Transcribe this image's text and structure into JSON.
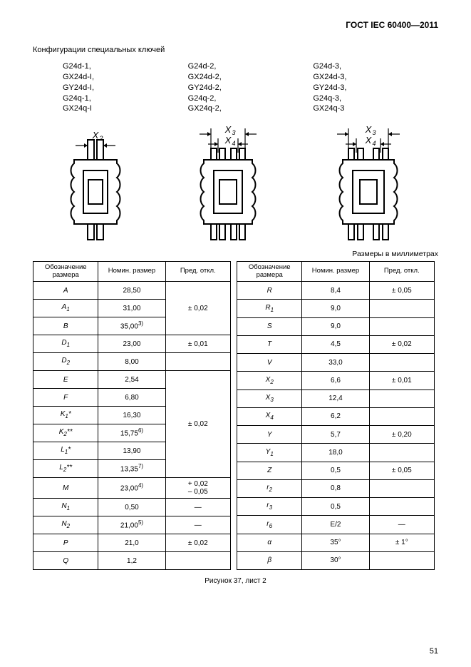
{
  "doc_header": "ГОСТ IEC 60400—2011",
  "section_title": "Конфигурации специальных ключей",
  "key_columns": [
    [
      "G24d-1,",
      "GX24d-I,",
      "GY24d-I,",
      "G24q-1,",
      "GX24q-I"
    ],
    [
      "G24d-2,",
      "GX24d-2,",
      "GY24d-2,",
      "G24q-2,",
      "GX24q-2,"
    ],
    [
      "G24d-3,",
      "GX24d-3,",
      "GY24d-3,",
      "G24q-3,",
      "GX24q-3"
    ]
  ],
  "diagram_labels": {
    "x2": "X₂",
    "x3": "X₃",
    "x4": "X₄"
  },
  "units_note": "Размеры в миллиметрах",
  "table_headers": {
    "col1": "Обозначение размера",
    "col2": "Номин. размер",
    "col3": "Пред. откл."
  },
  "left_rows": [
    {
      "sym": "A",
      "v": "28,50",
      "tol": "± 0,02",
      "r": 1
    },
    {
      "sym": "A<sub>1</sub>",
      "v": "31,00"
    },
    {
      "sym": "B",
      "v": "35,00<sup>3)</sup>"
    },
    {
      "sym": "D<sub>1</sub>",
      "v": "23,00",
      "tol": "± 0,01",
      "r": 1
    },
    {
      "sym": "D<sub>2</sub>",
      "v": "8,00",
      "tol": "",
      "r": 1
    },
    {
      "sym": "E",
      "v": "2,54",
      "tol": "± 0,02",
      "r": 6
    },
    {
      "sym": "F",
      "v": "6,80"
    },
    {
      "sym": "K<sub>1</sub>*",
      "v": "16,30"
    },
    {
      "sym": "K<sub>2</sub>**",
      "v": "15,75<sup>6)</sup>"
    },
    {
      "sym": "L<sub>1</sub>*",
      "v": "13,90"
    },
    {
      "sym": "L<sub>2</sub>**",
      "v": "13,35<sup>7)</sup>"
    },
    {
      "sym": "M",
      "v": "23,00<sup>4)</sup>",
      "tol": "+ 0,02<br>– 0,05",
      "r": 1
    },
    {
      "sym": "N<sub>1</sub>",
      "v": "0,50",
      "tol": "—",
      "r": 1
    },
    {
      "sym": "N<sub>2</sub>",
      "v": "21,00<sup>5)</sup>",
      "tol": "—",
      "r": 1
    },
    {
      "sym": "P",
      "v": "21,0",
      "tol": "± 0,02",
      "r": 1
    },
    {
      "sym": "Q",
      "v": "1,2",
      "tol": "",
      "r": 1
    }
  ],
  "right_rows": [
    {
      "sym": "R",
      "v": "8,4",
      "tol": "± 0,05",
      "r": 1
    },
    {
      "sym": "R<sub>1</sub>",
      "v": "9,0",
      "tol": "",
      "r": 1
    },
    {
      "sym": "S",
      "v": "9,0",
      "tol": "",
      "r": 1
    },
    {
      "sym": "T",
      "v": "4,5",
      "tol": "± 0,02",
      "r": 1
    },
    {
      "sym": "V",
      "v": "33,0",
      "tol": "",
      "r": 1
    },
    {
      "sym": "X<sub>2</sub>",
      "v": "6,6",
      "tol": "± 0,01",
      "r": 1
    },
    {
      "sym": "X<sub>3</sub>",
      "v": "12,4",
      "tol": "",
      "r": 1
    },
    {
      "sym": "X<sub>4</sub>",
      "v": "6,2",
      "tol": "",
      "r": 1
    },
    {
      "sym": "Y",
      "v": "5,7",
      "tol": "± 0,20",
      "r": 1
    },
    {
      "sym": "Y<sub>1</sub>",
      "v": "18,0",
      "tol": "",
      "r": 1
    },
    {
      "sym": "Z",
      "v": "0,5",
      "tol": "± 0,05",
      "r": 1
    },
    {
      "sym": "r<sub>2</sub>",
      "v": "0,8",
      "tol": "",
      "r": 1
    },
    {
      "sym": "r<sub>3</sub>",
      "v": "0,5",
      "tol": "",
      "r": 1
    },
    {
      "sym": "r<sub>6</sub>",
      "v": "E/2",
      "tol": "—",
      "r": 1
    },
    {
      "sym": "α",
      "v": "35°",
      "tol": "± 1°",
      "r": 1
    },
    {
      "sym": "β",
      "v": "30°",
      "tol": "",
      "r": 1
    }
  ],
  "caption": "Рисунок 37, лист 2",
  "page_number": "51"
}
